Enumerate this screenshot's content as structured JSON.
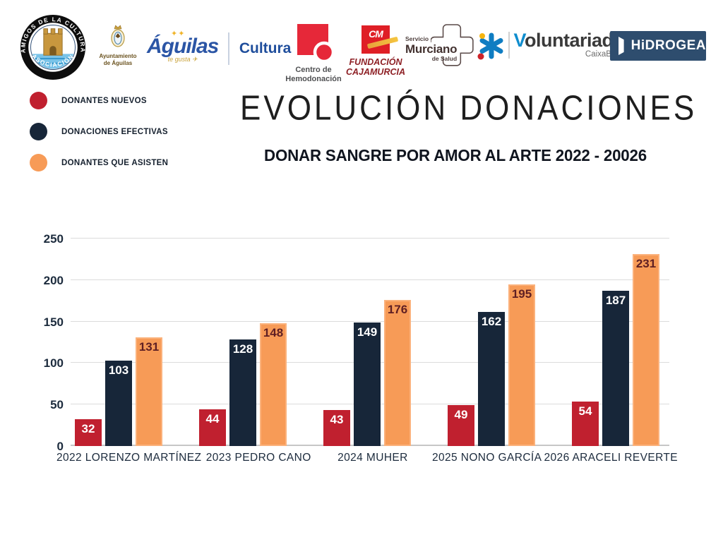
{
  "title": "EVOLUCIÓN DONACIONES",
  "subtitle": "DONAR SANGRE POR AMOR AL ARTE 2022 - 20026",
  "header": {
    "logos": {
      "amigos": {
        "arc_top": "AMIGOS DE LA CULTURA",
        "arc_bottom": "ASOCIACIÓN"
      },
      "ayuntamiento": {
        "line1": "Ayuntamiento",
        "line2": "de Águilas"
      },
      "aguilas": {
        "script": "Águilas",
        "tagline": "te gusta ✈",
        "cultura": "Cultura"
      },
      "hemodonacion": {
        "line1": "Centro de",
        "line2": "Hemodonación"
      },
      "cajamurcia": {
        "mark": "CM",
        "line1": "FUNDACIÓN",
        "line2": "CAJAMURCIA"
      },
      "murciano": {
        "line1": "Servicio",
        "line2": "Murciano",
        "line3": "de Salud"
      },
      "voluntariado": {
        "initial": "V",
        "rest": "oluntariado",
        "sub": "CaixaBank"
      },
      "hidrogea": {
        "label": "HiDROGEA"
      }
    }
  },
  "legend": [
    {
      "label": "DONANTES NUEVOS",
      "color": "#c0202f"
    },
    {
      "label": "DONACIONES EFECTIVAS",
      "color": "#172639"
    },
    {
      "label": "DONANTES QUE ASISTEN",
      "color": "#f79b57"
    }
  ],
  "chart_data": {
    "type": "bar",
    "categories": [
      "2022 LORENZO MARTÍNEZ",
      "2023 PEDRO CANO",
      "2024 MUHER",
      "2025 NONO GARCÍA",
      "2026 ARACELI REVERTE"
    ],
    "series": [
      {
        "name": "DONANTES NUEVOS",
        "color": "#c0202f",
        "label_color": "#ffffff",
        "values": [
          32,
          44,
          43,
          49,
          54
        ]
      },
      {
        "name": "DONACIONES EFECTIVAS",
        "color": "#172639",
        "label_color": "#ffffff",
        "values": [
          103,
          128,
          149,
          162,
          187
        ]
      },
      {
        "name": "DONANTES QUE ASISTEN",
        "color": "#f79b57",
        "label_color": "#5f1f23",
        "edge_color": "#fbb27c",
        "values": [
          131,
          148,
          176,
          195,
          231
        ]
      }
    ],
    "yticks": [
      0,
      50,
      100,
      150,
      200,
      250
    ],
    "ylim": [
      0,
      250
    ],
    "grid": true,
    "legend_position": "top-left",
    "xlabel": "",
    "ylabel": ""
  }
}
